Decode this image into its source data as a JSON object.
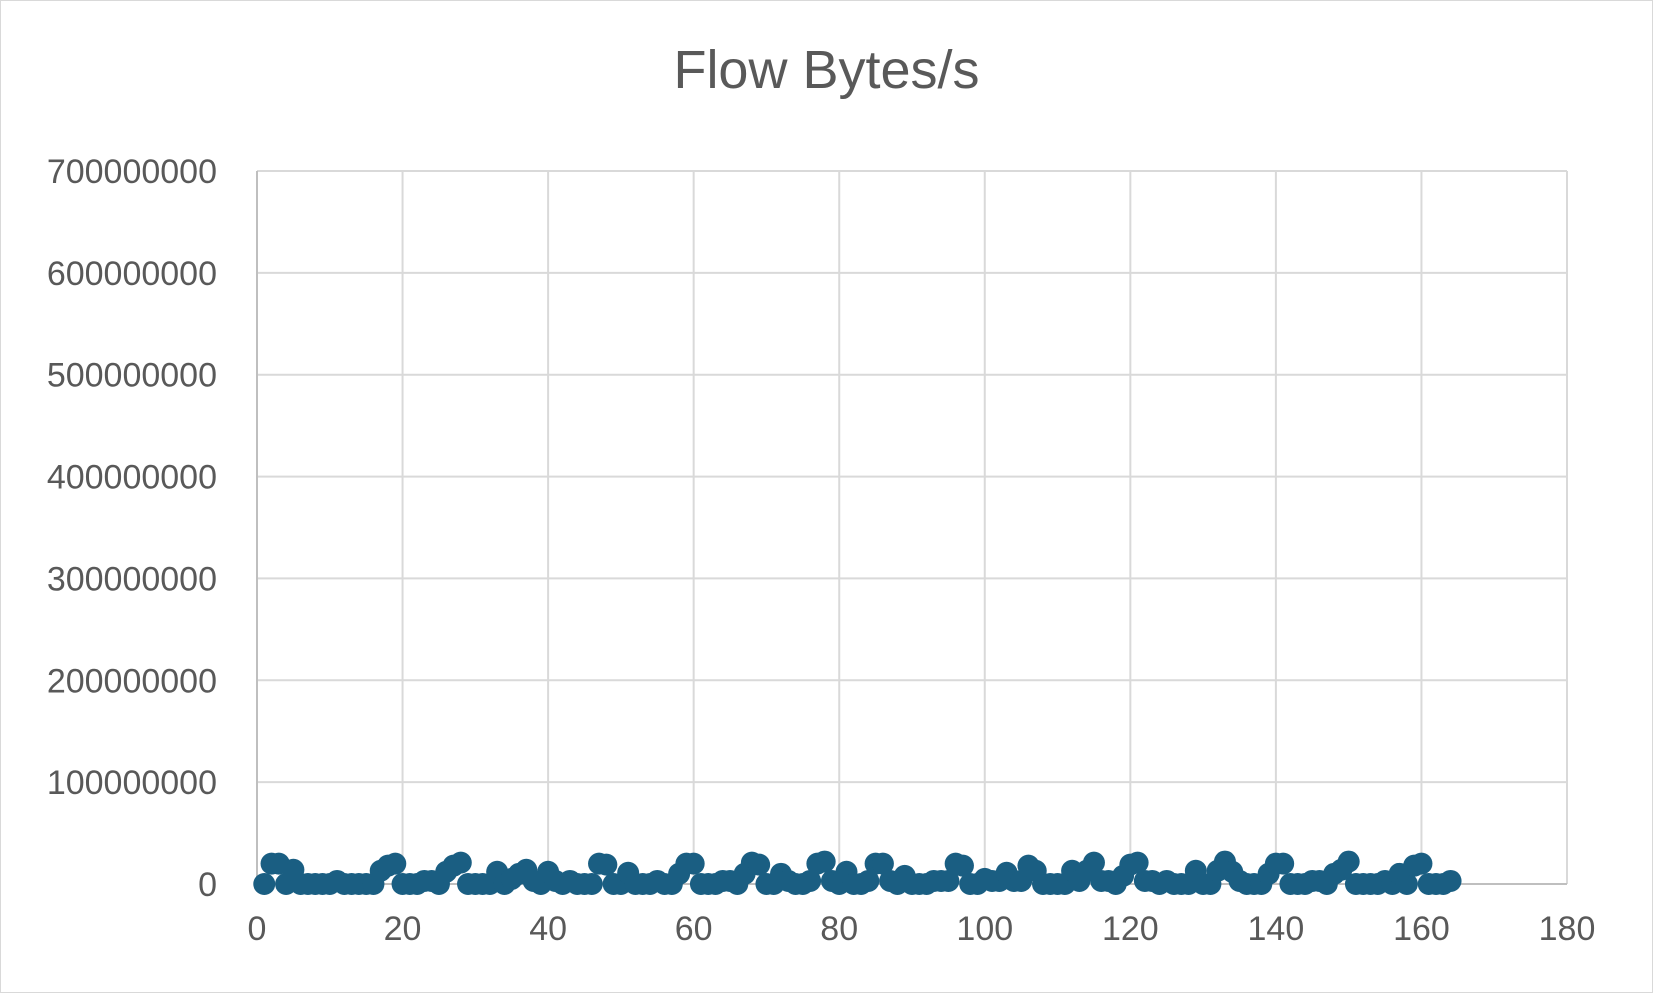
{
  "chart_data": {
    "type": "scatter",
    "title": "Flow Bytes/s",
    "xlabel": "",
    "ylabel": "",
    "xlim": [
      0,
      180
    ],
    "ylim": [
      0,
      700000000
    ],
    "x_ticks": [
      "0",
      "20",
      "40",
      "60",
      "80",
      "100",
      "120",
      "140",
      "160",
      "180"
    ],
    "y_ticks": [
      "0",
      "100000000",
      "200000000",
      "300000000",
      "400000000",
      "500000000",
      "600000000",
      "700000000"
    ],
    "grid": true,
    "legend": "none",
    "marker_color": "#1a5e82",
    "series": [
      {
        "x": [
          1,
          2,
          3,
          4,
          5,
          6,
          7,
          8,
          9,
          10,
          11,
          12,
          13,
          14,
          15,
          16,
          17,
          18,
          19,
          20,
          21,
          22,
          23,
          24,
          25,
          26,
          27,
          28,
          29,
          30,
          31,
          32,
          33,
          34,
          35,
          36,
          37,
          38,
          39,
          40,
          41,
          42,
          43,
          44,
          45,
          46,
          47,
          48,
          49,
          50,
          51,
          52,
          53,
          54,
          55,
          56,
          57,
          58,
          59,
          60,
          61,
          62,
          63,
          64,
          65,
          66,
          67,
          68,
          69,
          70,
          71,
          72,
          73,
          74,
          75,
          76,
          77,
          78,
          79,
          80,
          81,
          82,
          83,
          84,
          85,
          86,
          87,
          88,
          89,
          90,
          91,
          92,
          93,
          94,
          95,
          96,
          97,
          98,
          99,
          100,
          101,
          102,
          103,
          104,
          105,
          106,
          107,
          108,
          109,
          110,
          111,
          112,
          113,
          114,
          115,
          116,
          117,
          118,
          119,
          120,
          121,
          122,
          123,
          124,
          125,
          126,
          127,
          128,
          129,
          130,
          131,
          132,
          133,
          134,
          135,
          136,
          137,
          138,
          139,
          140,
          141,
          142,
          143,
          144,
          145,
          146,
          147,
          148,
          149,
          150,
          151,
          152,
          153,
          154,
          155,
          156,
          157,
          158,
          159,
          160,
          161,
          162,
          163,
          164
        ],
        "y": [
          0,
          20000000,
          20000000,
          0,
          14000000,
          0,
          0,
          0,
          0,
          0,
          3000000,
          0,
          0,
          0,
          0,
          0,
          13000000,
          18000000,
          20000000,
          0,
          0,
          0,
          3000000,
          3000000,
          0,
          12000000,
          18000000,
          21000000,
          0,
          0,
          0,
          0,
          12000000,
          0,
          5000000,
          10000000,
          14000000,
          3000000,
          0,
          12000000,
          3000000,
          0,
          3000000,
          0,
          0,
          0,
          20000000,
          19000000,
          0,
          0,
          11000000,
          0,
          0,
          0,
          3000000,
          0,
          0,
          10000000,
          20000000,
          20000000,
          0,
          0,
          0,
          3000000,
          3000000,
          0,
          10000000,
          21000000,
          19000000,
          0,
          0,
          10000000,
          3000000,
          0,
          0,
          3000000,
          20000000,
          22000000,
          3000000,
          0,
          12000000,
          0,
          0,
          3000000,
          20000000,
          20000000,
          3000000,
          0,
          8000000,
          0,
          0,
          0,
          3000000,
          3000000,
          3000000,
          20000000,
          18000000,
          0,
          0,
          5000000,
          3000000,
          3000000,
          11000000,
          3000000,
          3000000,
          18000000,
          13000000,
          0,
          0,
          0,
          0,
          13000000,
          3000000,
          13000000,
          21000000,
          3000000,
          3000000,
          0,
          8000000,
          19000000,
          21000000,
          3000000,
          3000000,
          0,
          3000000,
          0,
          0,
          0,
          13000000,
          0,
          0,
          13000000,
          22000000,
          12000000,
          3000000,
          0,
          0,
          0,
          10000000,
          20000000,
          20000000,
          0,
          0,
          0,
          3000000,
          3000000,
          0,
          10000000,
          14000000,
          22000000,
          0,
          0,
          0,
          0,
          3000000,
          0,
          10000000,
          0,
          18000000,
          20000000,
          0,
          0,
          0,
          3000000
        ]
      }
    ]
  }
}
